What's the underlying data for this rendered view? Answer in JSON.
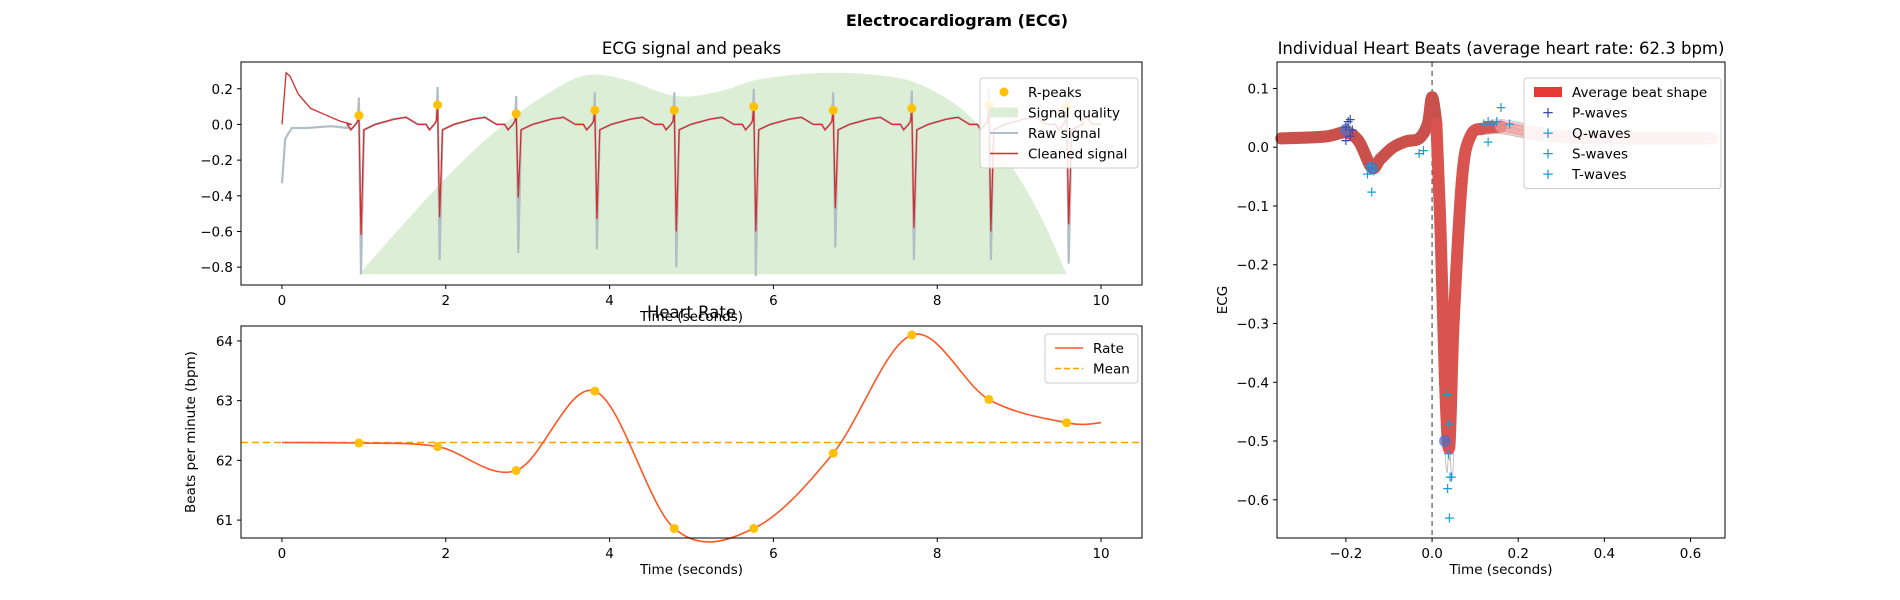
{
  "figure": {
    "title": "Electrocardiogram (ECG)"
  },
  "colors": {
    "raw": "#b0bec5",
    "cleaned": "#d32f2f",
    "rpeak": "#ffc107",
    "quality": "#dcefd6",
    "rate": "#ff5722",
    "mean": "#ffa000",
    "avgbeat": "#e53935",
    "pwave": "#3949ab",
    "wave": "#1e9bd7"
  },
  "chart_data": [
    {
      "type": "line",
      "title": "ECG signal and peaks",
      "xlabel": "Time (seconds)",
      "ylabel": "",
      "xlim": [
        -0.5,
        10.5
      ],
      "ylim": [
        -0.9,
        0.35
      ],
      "xticks": [
        0,
        2,
        4,
        6,
        8,
        10
      ],
      "yticks": [
        -0.8,
        -0.6,
        -0.4,
        -0.2,
        0.0,
        0.2
      ],
      "legend": [
        "R-peaks",
        "Signal quality",
        "Raw signal",
        "Cleaned signal"
      ],
      "legend_position": "top-right",
      "r_peaks": {
        "x": [
          0.94,
          1.9,
          2.86,
          3.82,
          4.79,
          5.76,
          6.73,
          7.69,
          8.63,
          9.58
        ],
        "y": [
          0.05,
          0.11,
          0.06,
          0.08,
          0.08,
          0.1,
          0.08,
          0.09,
          0.11,
          0.1
        ]
      },
      "r_peak_troughs": [
        -0.62,
        -0.52,
        -0.41,
        -0.53,
        -0.6,
        -0.6,
        -0.47,
        -0.58,
        -0.6,
        -0.56
      ],
      "raw_troughs": [
        -0.84,
        -0.76,
        -0.72,
        -0.7,
        -0.8,
        -0.85,
        -0.69,
        -0.76,
        -0.76,
        -0.78
      ],
      "signal_quality": {
        "x": [
          0.94,
          1.5,
          2.0,
          2.5,
          3.0,
          3.5,
          3.8,
          4.2,
          4.8,
          5.3,
          5.8,
          6.3,
          6.7,
          7.2,
          7.7,
          8.2,
          8.6,
          9.0,
          9.3,
          9.58
        ],
        "y": [
          -0.84,
          -0.55,
          -0.3,
          -0.08,
          0.1,
          0.24,
          0.28,
          0.25,
          0.16,
          0.18,
          0.25,
          0.28,
          0.29,
          0.28,
          0.24,
          0.12,
          -0.05,
          -0.3,
          -0.55,
          -0.84
        ]
      }
    },
    {
      "type": "line",
      "title": "Heart Rate",
      "xlabel": "Time (seconds)",
      "ylabel": "Beats per minute (bpm)",
      "xlim": [
        -0.5,
        10.5
      ],
      "ylim": [
        60.7,
        64.25
      ],
      "xticks": [
        0,
        2,
        4,
        6,
        8,
        10
      ],
      "yticks": [
        61,
        62,
        63,
        64
      ],
      "legend": [
        "Rate",
        "Mean"
      ],
      "legend_position": "top-right",
      "mean": 62.3,
      "rate_points": {
        "x": [
          0.0,
          0.94,
          1.9,
          2.86,
          3.82,
          4.79,
          5.76,
          6.73,
          7.69,
          8.63,
          9.58,
          10.0
        ],
        "y": [
          62.3,
          62.29,
          62.23,
          61.83,
          63.16,
          60.86,
          60.86,
          62.12,
          64.1,
          63.02,
          62.63,
          62.63
        ]
      }
    },
    {
      "type": "line",
      "title": "Individual Heart Beats (average heart rate: 62.3 bpm)",
      "xlabel": "Time (seconds)",
      "ylabel": "ECG",
      "xlim": [
        -0.36,
        0.68
      ],
      "ylim": [
        -0.665,
        0.145
      ],
      "xticks": [
        -0.2,
        0.0,
        0.2,
        0.4,
        0.6
      ],
      "yticks": [
        -0.6,
        -0.5,
        -0.4,
        -0.3,
        -0.2,
        -0.1,
        0.0,
        0.1
      ],
      "legend": [
        "Average beat shape",
        "P-waves",
        "Q-waves",
        "S-waves",
        "T-waves"
      ],
      "legend_position": "top-right",
      "average_beat": {
        "x": [
          -0.35,
          -0.25,
          -0.2,
          -0.17,
          -0.14,
          -0.12,
          -0.09,
          -0.06,
          -0.03,
          -0.01,
          0.0,
          0.01,
          0.02,
          0.03,
          0.04,
          0.05,
          0.07,
          0.09,
          0.12,
          0.16,
          0.2,
          0.25,
          0.3,
          0.35,
          0.45,
          0.55,
          0.65
        ],
        "y": [
          0.015,
          0.018,
          0.025,
          0.01,
          -0.035,
          -0.02,
          0.0,
          0.01,
          0.015,
          0.04,
          0.085,
          0.04,
          -0.15,
          -0.4,
          -0.51,
          -0.3,
          -0.05,
          0.02,
          0.032,
          0.035,
          0.03,
          0.022,
          0.018,
          0.016,
          0.015,
          0.015,
          0.015
        ]
      },
      "p_waves": {
        "x": [
          -0.2,
          -0.195,
          -0.19,
          -0.185,
          -0.2,
          -0.19
        ],
        "y": [
          0.035,
          0.045,
          0.048,
          0.03,
          0.012,
          0.02
        ]
      },
      "q_waves": {
        "x": [
          -0.14,
          -0.145,
          -0.135,
          -0.15,
          -0.03,
          -0.02
        ],
        "y": [
          -0.075,
          -0.03,
          -0.04,
          -0.045,
          -0.01,
          -0.005
        ]
      },
      "s_waves": {
        "x": [
          0.035,
          0.04,
          0.038,
          0.042,
          0.036,
          0.045,
          0.04
        ],
        "y": [
          -0.42,
          -0.47,
          -0.52,
          -0.56,
          -0.58,
          -0.56,
          -0.63
        ]
      },
      "t_waves": {
        "x": [
          0.12,
          0.13,
          0.14,
          0.15,
          0.16,
          0.13,
          0.18
        ],
        "y": [
          0.04,
          0.045,
          0.04,
          0.045,
          0.068,
          0.01,
          0.04
        ]
      }
    }
  ]
}
